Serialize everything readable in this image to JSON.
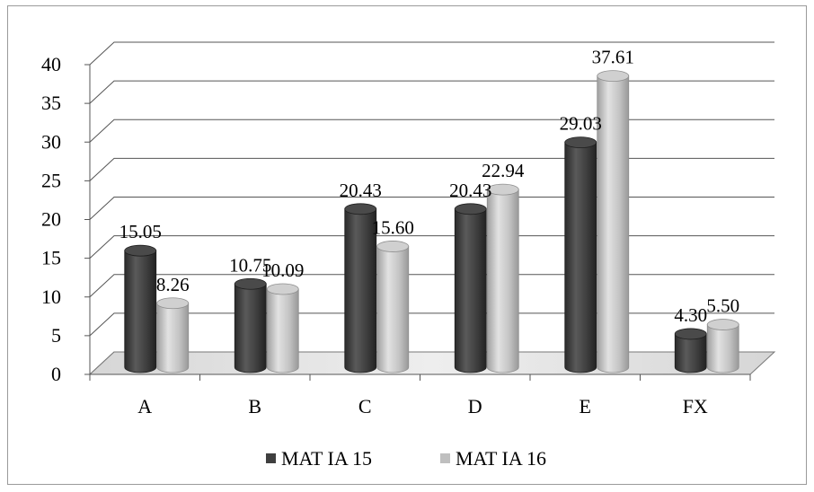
{
  "chart_data": {
    "type": "bar",
    "categories": [
      "A",
      "B",
      "C",
      "D",
      "E",
      "FX"
    ],
    "series": [
      {
        "name": "MAT IA 15",
        "values": [
          15.05,
          10.75,
          20.43,
          20.43,
          29.03,
          4.3
        ],
        "labels": [
          "15.05",
          "10.75",
          "20.43",
          "20.43",
          "29.03",
          "4.30"
        ]
      },
      {
        "name": "MAT IA 16",
        "values": [
          8.26,
          10.09,
          15.6,
          22.94,
          37.61,
          5.5
        ],
        "labels": [
          "8.26",
          "10.09",
          "15.60",
          "22.94",
          "37.61",
          "5.50"
        ]
      }
    ],
    "y_ticks": [
      0,
      5,
      10,
      15,
      20,
      25,
      30,
      35,
      40
    ],
    "ylim": [
      0,
      40
    ],
    "grid": true,
    "legend": "bottom",
    "colors": {
      "MAT IA 15": "#3f3f3f",
      "MAT IA 16": "#bfbfbf"
    }
  }
}
